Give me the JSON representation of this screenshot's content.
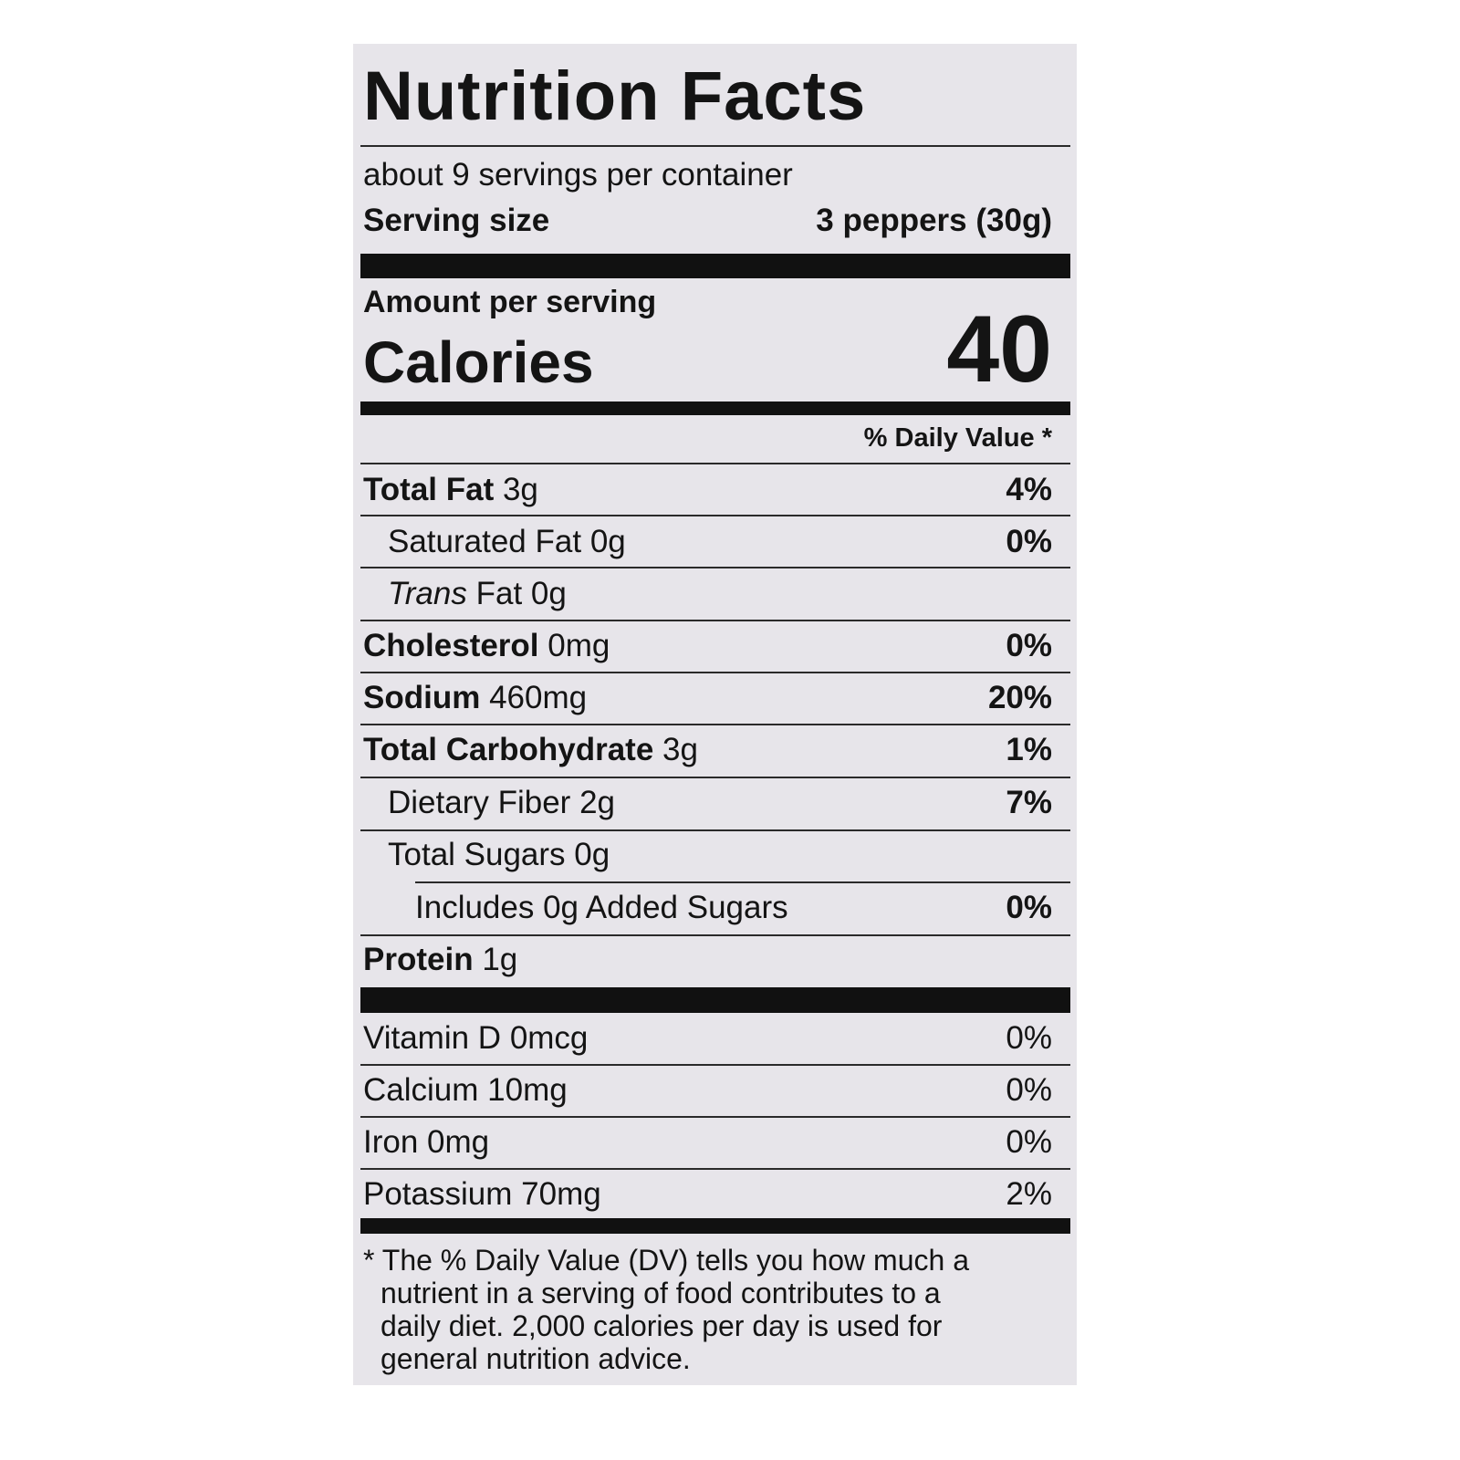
{
  "title": "Nutrition Facts",
  "servings_per_container": "about 9 servings per container",
  "serving_size": {
    "label": "Serving size",
    "value": "3 peppers (30g)"
  },
  "amount_per_serving": "Amount per serving",
  "calories": {
    "label": "Calories",
    "value": 40
  },
  "daily_value_header": "% Daily Value *",
  "nutrients": [
    {
      "name": "Total Fat",
      "amount": "3g",
      "dv": "4%"
    },
    {
      "name": "Saturated Fat",
      "amount": "0g",
      "dv": "0%"
    },
    {
      "name_italic": "Trans",
      "name": "Fat",
      "amount": "0g"
    },
    {
      "name": "Cholesterol",
      "amount": "0mg",
      "dv": "0%"
    },
    {
      "name": "Sodium",
      "amount": "460mg",
      "dv": "20%"
    },
    {
      "name": "Total Carbohydrate",
      "amount": "3g",
      "dv": "1%"
    },
    {
      "name": "Dietary Fiber",
      "amount": "2g",
      "dv": "7%"
    },
    {
      "name": "Total Sugars",
      "amount": "0g"
    },
    {
      "name": "Includes 0g Added Sugars",
      "dv": "0%"
    },
    {
      "name": "Protein",
      "amount": "1g"
    }
  ],
  "vitamins_minerals": [
    {
      "name": "Vitamin D",
      "amount": "0mcg",
      "dv": "0%"
    },
    {
      "name": "Calcium",
      "amount": "10mg",
      "dv": "0%"
    },
    {
      "name": "Iron",
      "amount": "0mg",
      "dv": "0%"
    },
    {
      "name": "Potassium",
      "amount": "70mg",
      "dv": "2%"
    }
  ],
  "footnote": [
    "* The % Daily Value (DV) tells you how much a",
    "nutrient in a serving of food contributes to a",
    "daily diet. 2,000 calories per day is used for",
    "general nutrition advice."
  ]
}
